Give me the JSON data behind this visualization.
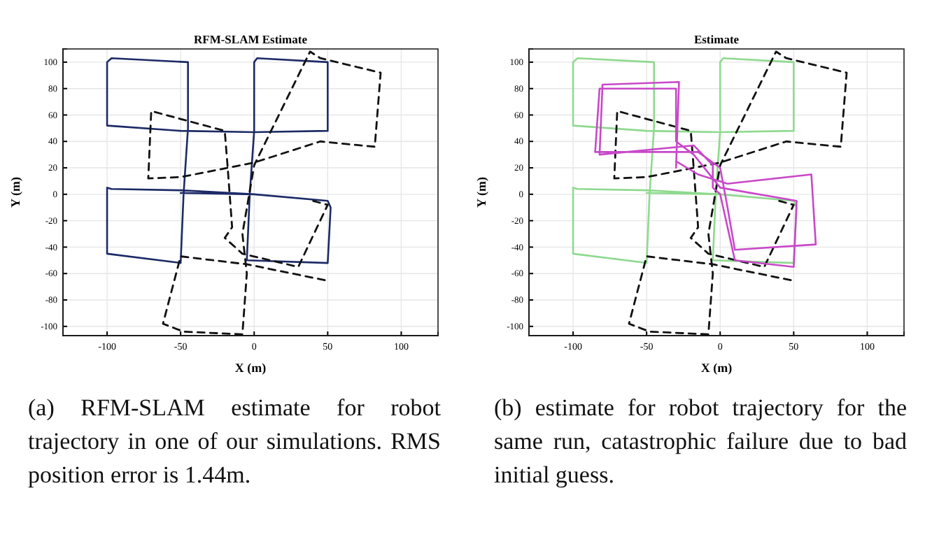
{
  "chart_data": [
    {
      "type": "line",
      "title": "RFM-SLAM Estimate",
      "xlabel": "X (m)",
      "ylabel": "Y (m)",
      "xlim": [
        -130,
        125
      ],
      "ylim": [
        -107,
        110
      ],
      "xticks": [
        -100,
        -50,
        0,
        50,
        100
      ],
      "yticks": [
        -100,
        -80,
        -60,
        -40,
        -20,
        0,
        20,
        40,
        60,
        80,
        100
      ],
      "grid": true,
      "marker": "none",
      "series": [
        {
          "color": "#1c2a66",
          "line_style": "solid",
          "x": [
            -50,
            0,
            50,
            52,
            50,
            -5,
            -3,
            0,
            0,
            2,
            50,
            50,
            0,
            -50,
            -100,
            -100,
            -97,
            -45,
            -45,
            -48,
            -50,
            -100,
            -100,
            -97,
            -50,
            0
          ],
          "values": [
            1,
            0,
            -5,
            -10,
            -52,
            -50,
            0,
            48,
            100,
            103,
            100,
            48,
            47,
            48,
            52,
            100,
            103,
            100,
            50,
            0,
            -52,
            -45,
            5,
            4,
            3,
            0
          ]
        },
        {
          "color": "#111111",
          "line_style": "dashed",
          "x": [
            48,
            -5,
            -50,
            -62,
            -48,
            -8,
            -5,
            -8,
            0,
            38,
            45,
            86,
            82,
            45,
            0,
            -50,
            -72,
            -70,
            -20,
            -18,
            -15,
            -20,
            -8,
            30,
            50,
            40
          ],
          "values": [
            -65,
            -53,
            -47,
            -98,
            -104,
            -106,
            -60,
            -30,
            22,
            108,
            103,
            92,
            36,
            40,
            24,
            13,
            12,
            63,
            48,
            20,
            -25,
            -33,
            -45,
            -55,
            -8,
            -5
          ]
        }
      ],
      "annotations": [
        "(a) RFM-SLAM estimate for robot trajectory in one of our simulations. RMS position error is 1.44m."
      ]
    },
    {
      "type": "line",
      "title": "Estimate",
      "xlabel": "X (m)",
      "ylabel": "Y (m)",
      "xlim": [
        -130,
        125
      ],
      "ylim": [
        -107,
        110
      ],
      "xticks": [
        -100,
        -50,
        0,
        50,
        100
      ],
      "yticks": [
        -100,
        -80,
        -60,
        -40,
        -20,
        0,
        20,
        40,
        60,
        80,
        100
      ],
      "grid": true,
      "marker": "none",
      "series": [
        {
          "color": "#8fd98f",
          "line_style": "solid",
          "x": [
            -50,
            0,
            50,
            52,
            50,
            -5,
            -3,
            0,
            0,
            2,
            50,
            50,
            0,
            -50,
            -100,
            -100,
            -97,
            -45,
            -45,
            -48,
            -50,
            -100,
            -100,
            -97,
            -50,
            0
          ],
          "values": [
            1,
            0,
            -5,
            -10,
            -52,
            -50,
            0,
            48,
            100,
            103,
            100,
            48,
            47,
            48,
            52,
            100,
            103,
            100,
            50,
            0,
            -52,
            -45,
            5,
            4,
            3,
            0
          ]
        },
        {
          "color": "#111111",
          "line_style": "dashed",
          "x": [
            48,
            -5,
            -50,
            -62,
            -48,
            -8,
            -5,
            -8,
            0,
            38,
            45,
            86,
            82,
            45,
            0,
            -50,
            -72,
            -70,
            -20,
            -18,
            -15,
            -20,
            -8,
            30,
            50,
            40
          ],
          "values": [
            -65,
            -53,
            -47,
            -98,
            -104,
            -106,
            -60,
            -30,
            22,
            108,
            103,
            92,
            36,
            40,
            24,
            13,
            12,
            63,
            48,
            20,
            -25,
            -33,
            -45,
            -55,
            -8,
            -5
          ]
        },
        {
          "color": "#c848c8",
          "line_style": "solid",
          "x": [
            -30,
            -28,
            -80,
            -82,
            -18,
            -5,
            -5,
            0,
            10,
            50,
            52,
            0,
            -18,
            -30,
            -30,
            -82,
            -85,
            -15,
            0,
            5,
            10,
            65,
            62,
            5,
            -15,
            -30
          ],
          "values": [
            20,
            85,
            83,
            30,
            37,
            22,
            5,
            0,
            -50,
            -55,
            -5,
            5,
            30,
            40,
            80,
            80,
            32,
            32,
            20,
            -10,
            -42,
            -38,
            15,
            8,
            15,
            25
          ]
        }
      ],
      "annotations": [
        "(b) estimate for robot trajectory for the same run, catastrophic failure due to bad initial guess."
      ]
    }
  ]
}
